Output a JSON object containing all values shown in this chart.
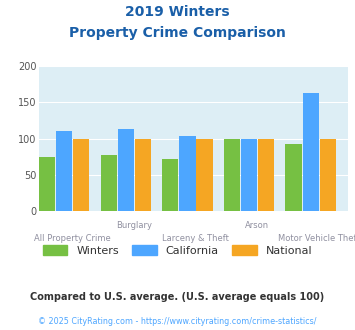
{
  "title_line1": "2019 Winters",
  "title_line2": "Property Crime Comparison",
  "series": {
    "Winters": [
      75,
      77,
      72,
      100,
      93
    ],
    "California": [
      110,
      113,
      103,
      100,
      163
    ],
    "National": [
      100,
      100,
      100,
      100,
      100
    ]
  },
  "bar_colors": {
    "Winters": "#76c043",
    "California": "#4da6ff",
    "National": "#f5a623"
  },
  "top_labels": [
    "",
    "Burglary",
    "",
    "Arson",
    ""
  ],
  "bottom_labels": [
    "All Property Crime",
    "",
    "Larceny & Theft",
    "",
    "Motor Vehicle Theft"
  ],
  "ylim": [
    0,
    200
  ],
  "yticks": [
    0,
    50,
    100,
    150,
    200
  ],
  "plot_bg": "#ddeef5",
  "title_color": "#1a5fa8",
  "label_color": "#9090a0",
  "grid_color": "#ffffff",
  "footnote1": "Compared to U.S. average. (U.S. average equals 100)",
  "footnote2": "© 2025 CityRating.com - https://www.cityrating.com/crime-statistics/",
  "footnote1_color": "#333333",
  "footnote2_color": "#4da6ff",
  "num_groups": 5
}
